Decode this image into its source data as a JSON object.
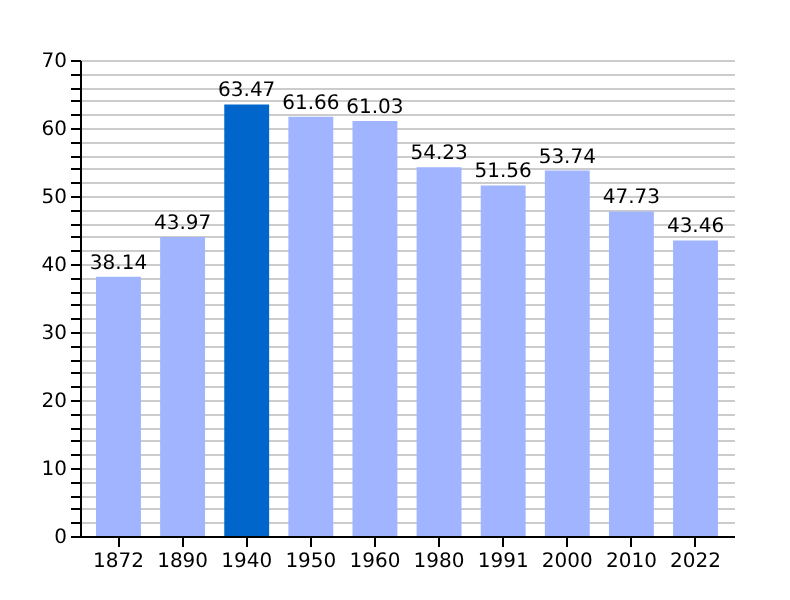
{
  "chart_data": {
    "type": "bar",
    "categories": [
      "1872",
      "1890",
      "1940",
      "1950",
      "1960",
      "1980",
      "1991",
      "2000",
      "2010",
      "2022"
    ],
    "values": [
      38.14,
      43.97,
      63.47,
      61.66,
      61.03,
      54.23,
      51.56,
      53.74,
      47.73,
      43.46
    ],
    "colors": [
      "#a0b4ff",
      "#a0b4ff",
      "#0066cc",
      "#a0b4ff",
      "#a0b4ff",
      "#a0b4ff",
      "#a0b4ff",
      "#a0b4ff",
      "#a0b4ff",
      "#a0b4ff"
    ],
    "ylim": [
      0,
      70
    ],
    "yticks": [
      0,
      {
        "value": 2,
        "label": null
      },
      {
        "value": 4,
        "label": null
      },
      {
        "value": 6,
        "label": null
      },
      {
        "value": 8,
        "label": null
      },
      10,
      {
        "value": 12,
        "label": null
      },
      {
        "value": 14,
        "label": null
      },
      {
        "value": 16,
        "label": null
      },
      {
        "value": 18,
        "label": null
      },
      20,
      {
        "value": 22,
        "label": null
      },
      {
        "value": 24,
        "label": null
      },
      {
        "value": 26,
        "label": null
      },
      {
        "value": 28,
        "label": null
      },
      30,
      {
        "value": 32,
        "label": null
      },
      {
        "value": 34,
        "label": null
      },
      {
        "value": 36,
        "label": null
      },
      {
        "value": 38,
        "label": null
      },
      40,
      {
        "value": 42,
        "label": null
      },
      {
        "value": 44,
        "label": null
      },
      {
        "value": 46,
        "label": null
      },
      {
        "value": 48,
        "label": null
      },
      50,
      {
        "value": 52,
        "label": null
      },
      {
        "value": 54,
        "label": null
      },
      {
        "value": 56,
        "label": null
      },
      {
        "value": 58,
        "label": null
      },
      60,
      {
        "value": 62,
        "label": null
      },
      {
        "value": 64,
        "label": null
      },
      {
        "value": 66,
        "label": null
      },
      {
        "value": 68,
        "label": null
      },
      70
    ],
    "grid": "y",
    "data_labels": true
  }
}
